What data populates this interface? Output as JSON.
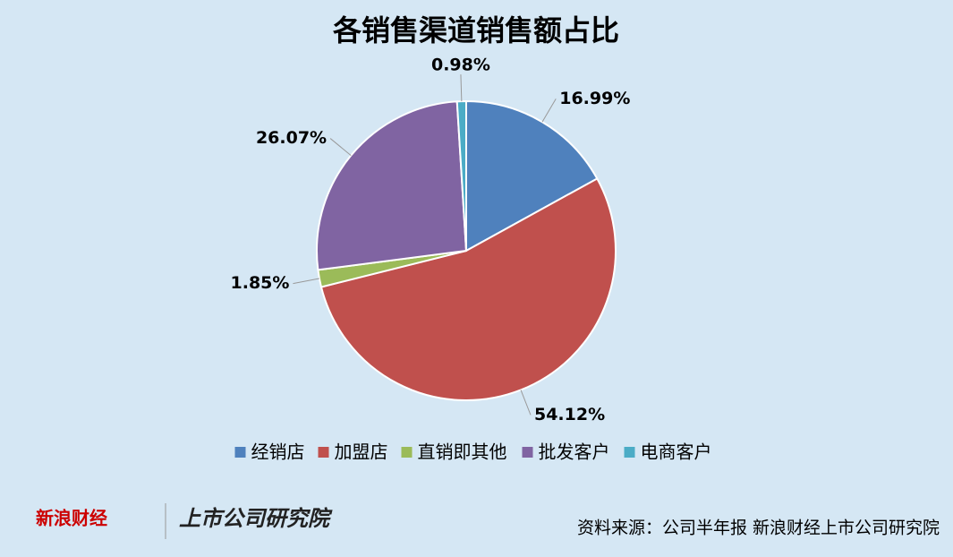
{
  "chart_data": {
    "type": "pie",
    "title": "各销售渠道销售额占比",
    "categories": [
      "经销店",
      "加盟店",
      "直销即其他",
      "批发客户",
      "电商客户"
    ],
    "values": [
      16.99,
      54.12,
      1.85,
      26.07,
      0.98
    ],
    "value_labels": [
      "16.99%",
      "54.12%",
      "1.85%",
      "26.07%",
      "0.98%"
    ],
    "colors": [
      "#4f81bd",
      "#c0504d",
      "#9bbb59",
      "#8064a2",
      "#4bacc6"
    ],
    "legend": "bottom"
  },
  "footer": {
    "logo": "新浪财经",
    "logo2": "上市公司研究院",
    "source": "资料来源：公司半年报 新浪财经上市公司研究院"
  }
}
